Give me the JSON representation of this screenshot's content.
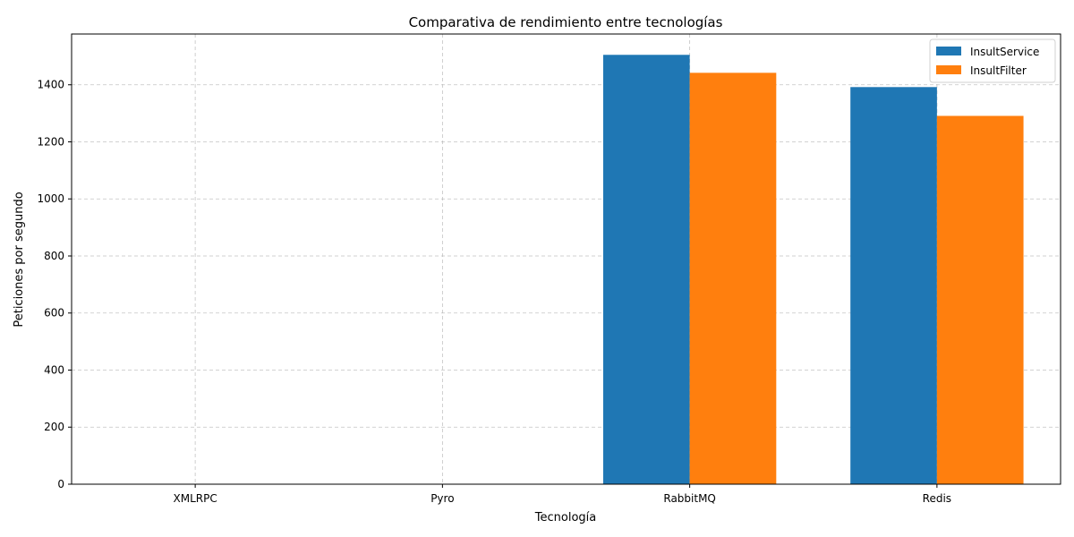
{
  "chart_data": {
    "type": "bar",
    "title": "Comparativa de rendimiento entre tecnologías",
    "xlabel": "Tecnología",
    "ylabel": "Peticiones por segundo",
    "categories": [
      "XMLRPC",
      "Pyro",
      "RabbitMQ",
      "Redis"
    ],
    "series": [
      {
        "name": "InsultService",
        "color": "#1f77b4",
        "values": [
          0,
          0,
          1505,
          1392
        ]
      },
      {
        "name": "InsultFilter",
        "color": "#ff7f0e",
        "values": [
          0,
          0,
          1442,
          1291
        ]
      }
    ],
    "ylim": [
      0,
      1578
    ],
    "yticks": [
      0,
      200,
      400,
      600,
      800,
      1000,
      1200,
      1400
    ],
    "grid": true,
    "legend_position": "top-right"
  }
}
